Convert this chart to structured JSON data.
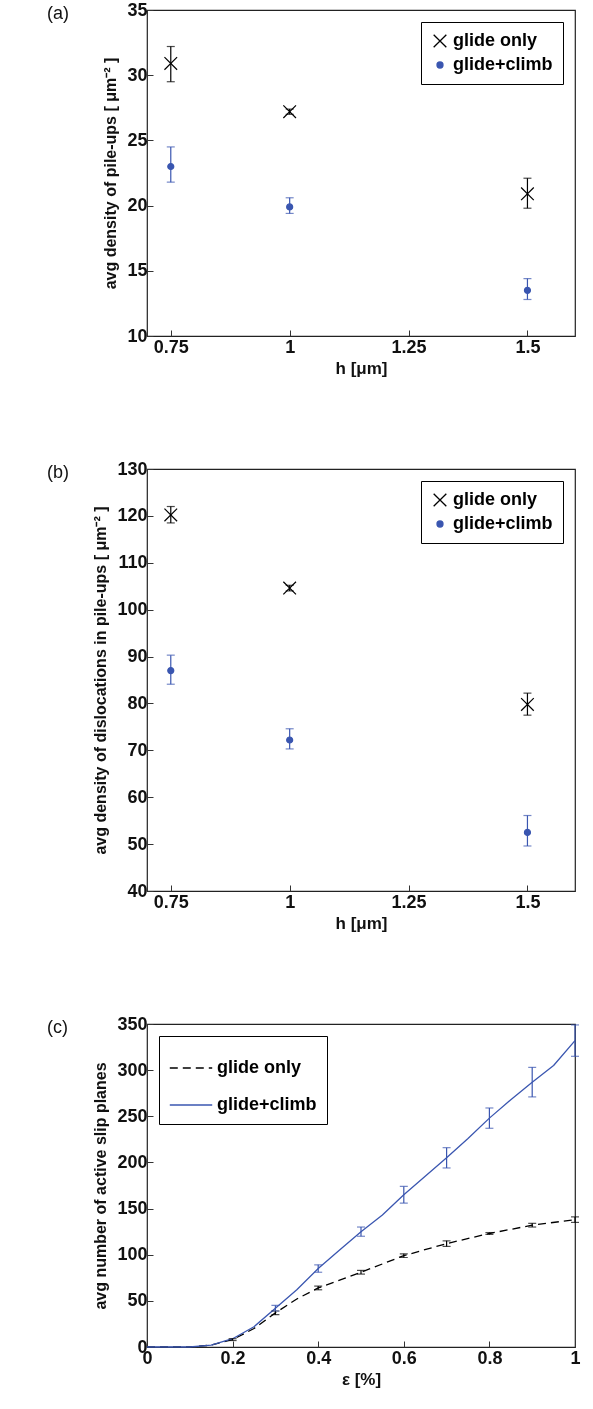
{
  "chart_data": [
    {
      "type": "scatter",
      "title": "(a)",
      "xlabel": "h [μm]",
      "ylabel": "avg density of pile-ups  [ μm⁻² ]",
      "x": [
        0.75,
        1,
        1.5
      ],
      "xlim": [
        0.7,
        1.6
      ],
      "xticks": [
        0.75,
        1,
        1.25,
        1.5
      ],
      "ylim": [
        10,
        35
      ],
      "yticks": [
        10,
        15,
        20,
        25,
        30,
        35
      ],
      "legend": "top right",
      "grid": false,
      "series": [
        {
          "name": "glide only",
          "color": "#000000",
          "marker": "cross",
          "values": [
            30.9,
            27.2,
            20.9
          ],
          "errors": [
            [
              29.5,
              32.2
            ],
            [
              27.0,
              27.4
            ],
            [
              19.8,
              22.1
            ]
          ]
        },
        {
          "name": "glide+climb",
          "color": "#3a56b0",
          "marker": "circle",
          "values": [
            23.0,
            19.9,
            13.5
          ],
          "errors": [
            [
              21.8,
              24.5
            ],
            [
              19.4,
              20.6
            ],
            [
              12.8,
              14.4
            ]
          ]
        }
      ]
    },
    {
      "type": "scatter",
      "title": "(b)",
      "xlabel": "h [μm]",
      "ylabel": "avg density of dislocations in pile-ups  [ μm⁻² ]",
      "x": [
        0.75,
        1,
        1.5
      ],
      "xlim": [
        0.7,
        1.6
      ],
      "xticks": [
        0.75,
        1,
        1.25,
        1.5
      ],
      "ylim": [
        40,
        130
      ],
      "yticks": [
        40,
        50,
        60,
        70,
        80,
        90,
        100,
        110,
        120,
        130
      ],
      "legend": "top right",
      "grid": false,
      "series": [
        {
          "name": "glide only",
          "color": "#000000",
          "marker": "cross",
          "values": [
            120.2,
            104.6,
            79.8
          ],
          "errors": [
            [
              118.5,
              122.0
            ],
            [
              104.0,
              105.2
            ],
            [
              77.5,
              82.2
            ]
          ]
        },
        {
          "name": "glide+climb",
          "color": "#3a56b0",
          "marker": "circle",
          "values": [
            87.0,
            72.2,
            52.5
          ],
          "errors": [
            [
              84.1,
              90.3
            ],
            [
              70.3,
              74.6
            ],
            [
              49.6,
              56.1
            ]
          ]
        }
      ]
    },
    {
      "type": "line",
      "title": "(c)",
      "xlabel": "ε  [%]",
      "ylabel": "avg number of active slip planes",
      "xlim": [
        0,
        1
      ],
      "xticks": [
        0,
        0.2,
        0.4,
        0.6,
        0.8,
        1
      ],
      "ylim": [
        0,
        350
      ],
      "yticks": [
        0,
        50,
        100,
        150,
        200,
        250,
        300,
        350
      ],
      "legend": "top left",
      "grid": false,
      "series": [
        {
          "name": "glide only",
          "color": "#000000",
          "line_style": "dashed",
          "x": [
            0,
            0.1,
            0.15,
            0.2,
            0.25,
            0.3,
            0.35,
            0.4,
            0.5,
            0.6,
            0.7,
            0.8,
            0.9,
            1.0
          ],
          "values": [
            0,
            0,
            2,
            8,
            20,
            37,
            52,
            64,
            81,
            99,
            112,
            123,
            132,
            138
          ],
          "errors": [
            null,
            null,
            null,
            1,
            null,
            2,
            null,
            2,
            2,
            2,
            3,
            1,
            2,
            3
          ]
        },
        {
          "name": "glide+climb",
          "color": "#3a56b0",
          "line_style": "solid",
          "x": [
            0,
            0.1,
            0.15,
            0.2,
            0.25,
            0.3,
            0.35,
            0.4,
            0.45,
            0.5,
            0.55,
            0.6,
            0.65,
            0.7,
            0.75,
            0.8,
            0.85,
            0.9,
            0.95,
            1.0
          ],
          "values": [
            0,
            0,
            2,
            9,
            22,
            42,
            62,
            85,
            105,
            125,
            143,
            165,
            185,
            205,
            226,
            248,
            268,
            287,
            305,
            332
          ],
          "errors": [
            null,
            null,
            null,
            null,
            null,
            3,
            null,
            4,
            null,
            5,
            null,
            9,
            null,
            11,
            null,
            11,
            null,
            16,
            null,
            17
          ]
        }
      ]
    }
  ]
}
